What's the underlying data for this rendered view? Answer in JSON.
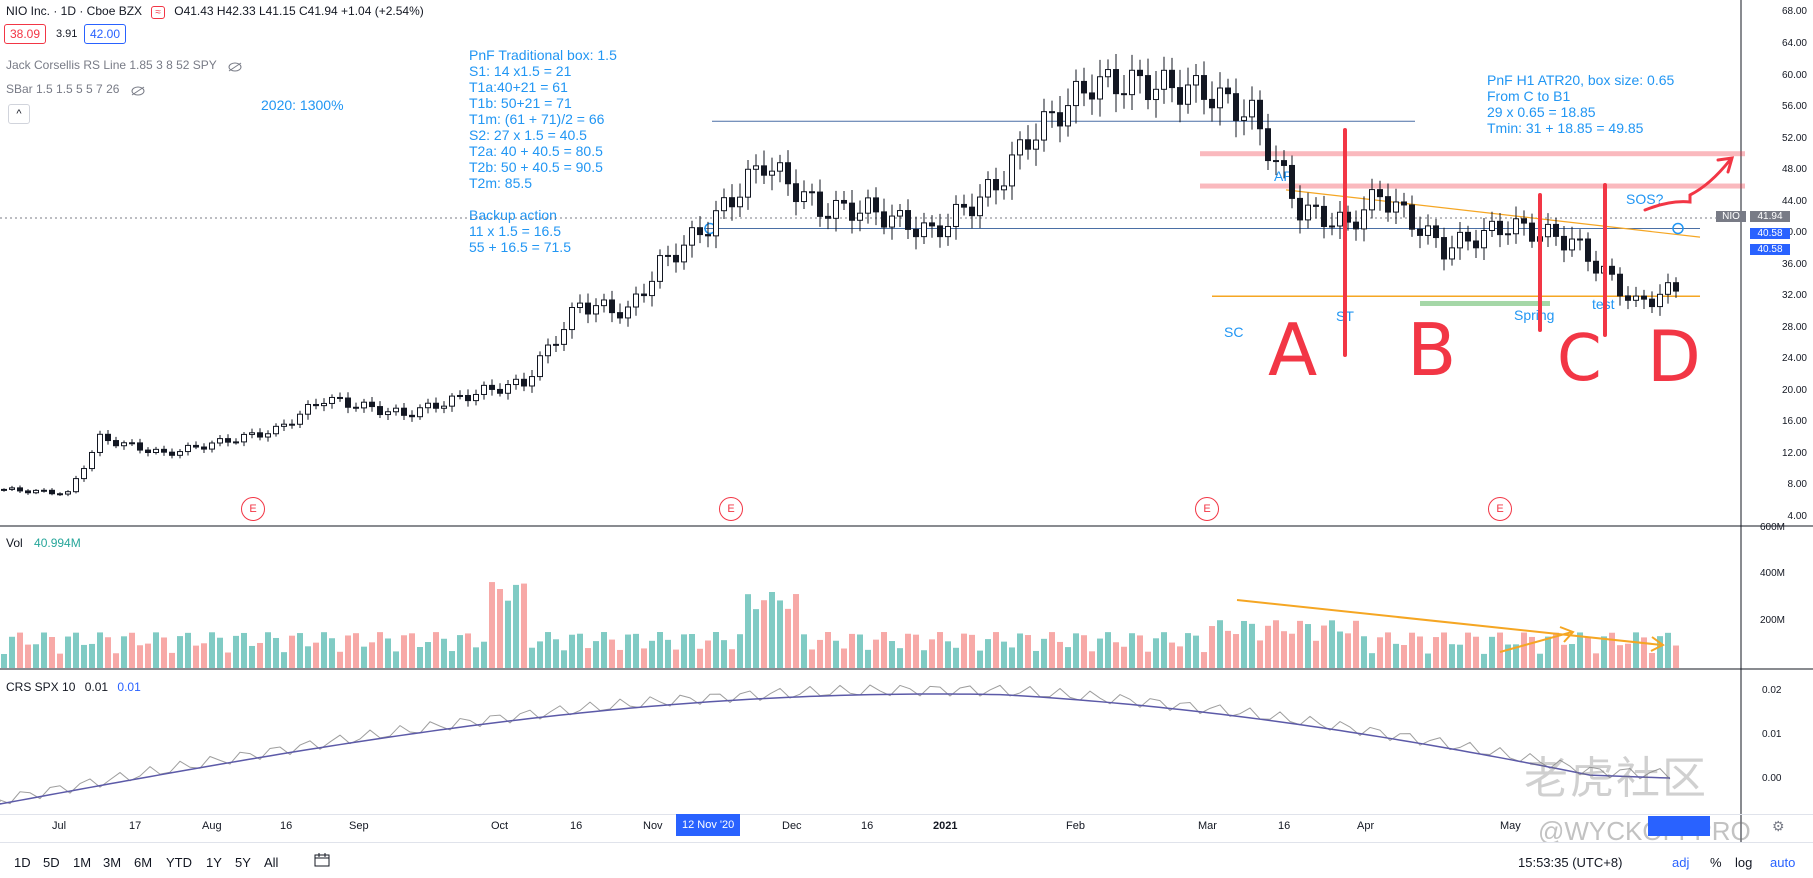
{
  "header": {
    "title": "NIO Inc. · 1D · Cboe BZX",
    "ohlc": "O41.43  H42.33  L41.15  C41.94  +1.04 (+2.54%)",
    "bid": "38.09",
    "spread": "3.91",
    "ask": "42.00"
  },
  "indicators": {
    "rs_line": "Jack Corsellis RS Line 1.85 3 8 52 SPY",
    "sbar": "SBar 1.5 1.5 5 5 7 26",
    "vol_label": "Vol",
    "vol_value": "40.994M",
    "crs_label": "CRS SPX 10",
    "crs_v1": "0.01",
    "crs_v2": "0.01"
  },
  "annotations": {
    "pnf_traditional": "PnF Traditional box: 1.5\nS1: 14 x1.5 = 21\nT1a:40+21 = 61\nT1b: 50+21 = 71\nT1m: (61 + 71)/2 = 66\nS2: 27 x 1.5 = 40.5\nT2a: 40 + 40.5 = 80.5\nT2b: 50 + 40.5 = 90.5\nT2m: 85.5",
    "backup": "Backup action\n11 x 1.5 = 16.5\n55 + 16.5 = 71.5",
    "year_gain": "2020: 1300%",
    "pnf_h1": "PnF H1 ATR20, box size: 0.65\nFrom C to B1\n29 x 0.65 = 18.85\nTmin: 31 + 18.85 = 49.85",
    "sc": "SC",
    "ar": "AR",
    "st": "ST",
    "spring": "Spring",
    "test": "test",
    "sos": "SOS?",
    "phase_a": "A",
    "phase_b": "B",
    "phase_c": "C",
    "phase_d": "D",
    "earnings": "E"
  },
  "price_axis": [
    "68.00",
    "64.00",
    "60.00",
    "56.00",
    "52.00",
    "48.00",
    "44.00",
    "40.00",
    "36.00",
    "32.00",
    "28.00",
    "24.00",
    "20.00",
    "16.00",
    "12.00",
    "8.00",
    "4.00"
  ],
  "price_tags": {
    "symbol": "NIO",
    "last": "41.94",
    "t1": "40.58",
    "t2": "40.58"
  },
  "vol_axis": [
    "600M",
    "400M",
    "200M"
  ],
  "crs_axis": [
    "0.02",
    "0.01",
    "0.00"
  ],
  "time_axis": [
    "Jul",
    "17",
    "Aug",
    "16",
    "Sep",
    "Oct",
    "16",
    "Nov",
    "12 Nov '20",
    "Dec",
    "16",
    "2021",
    "Feb",
    "Mar",
    "16",
    "Apr",
    "May"
  ],
  "bottom": {
    "timeframes": [
      "1D",
      "5D",
      "1M",
      "3M",
      "6M",
      "YTD",
      "1Y",
      "5Y",
      "All"
    ],
    "clock": "15:53:35 (UTC+8)",
    "adj": "adj",
    "pct": "%",
    "log": "log",
    "auto": "auto"
  },
  "watermark": {
    "name": "老虎社区",
    "handle": "@WYCKOFFPRO"
  },
  "colors": {
    "up": "#26a69a",
    "down": "#ef5350",
    "vol_up": "#80cbc4",
    "vol_down": "#f7a9a7",
    "blue": "#2196f3",
    "red": "#f23645",
    "orange": "#f5a623"
  }
}
